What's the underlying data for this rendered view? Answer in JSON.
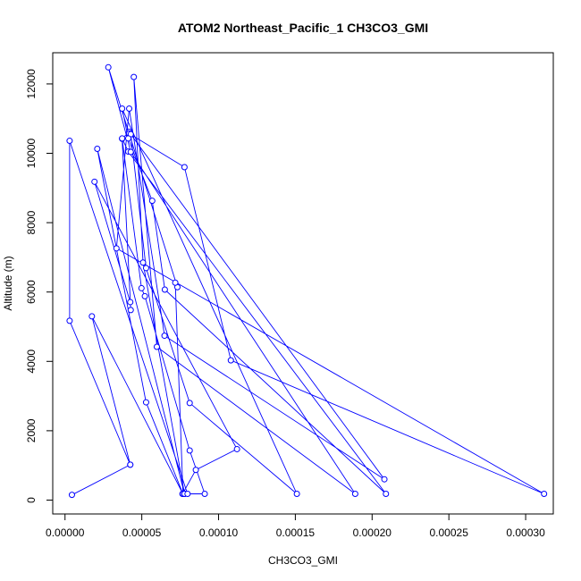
{
  "chart_data": {
    "type": "line",
    "title": "ATOM2 Northeast_Pacific_1 CH3CO3_GMI",
    "xlabel": "CH3CO3_GMI",
    "ylabel": "Altitude (m)",
    "xlim": [
      -8e-06,
      0.000318
    ],
    "ylim": [
      -400,
      12900
    ],
    "xticks": [
      0.0,
      5e-05,
      0.0001,
      0.00015,
      0.0002,
      0.00025,
      0.0003
    ],
    "xtick_labels": [
      "0.00000",
      "0.00005",
      "0.00010",
      "0.00015",
      "0.00020",
      "0.00025",
      "0.00030"
    ],
    "yticks": [
      0,
      2000,
      4000,
      6000,
      8000,
      10000,
      12000
    ],
    "ytick_labels": [
      "0",
      "2000",
      "4000",
      "6000",
      "8000",
      "10000",
      "12000"
    ],
    "grid": false,
    "line_color": "#0000ff",
    "marker": "open-circle",
    "series": [
      {
        "name": "",
        "x": [
          4.5e-06,
          4.25e-05,
          1.75e-05,
          7.68e-05,
          7.65e-05,
          8.52e-05,
          0.000112,
          1.92e-05,
          4.25e-05,
          4.28e-05,
          3.72e-05,
          4.18e-05,
          4.18e-05,
          7.78e-05,
          0.000108,
          0.000312,
          3.35e-05,
          4.18e-05,
          6.48e-05,
          0.000208,
          4.28e-05,
          5.28e-05,
          8.12e-05,
          0.000151,
          3.72e-05,
          4.12e-05,
          5.68e-05,
          6.5e-05,
          0.000209,
          4.12e-05,
          3.72e-05,
          4.98e-05,
          5.2e-05,
          8.12e-05,
          9.1e-05,
          7.78e-05,
          5.08e-05,
          4.48e-05,
          5.98e-05,
          0.000189,
          4.28e-05,
          2.82e-05,
          7.32e-05,
          7.18e-05,
          7.68e-05,
          5.28e-05,
          2.1e-05,
          7.78e-05,
          7.98e-05,
          3e-06,
          3e-06,
          4.25e-05
        ],
        "y": [
          150,
          1020,
          5300,
          180,
          180,
          870,
          1470,
          9180,
          5710,
          5480,
          10420,
          10620,
          10570,
          9600,
          4030,
          180,
          7260,
          11290,
          4740,
          600,
          10550,
          6690,
          2800,
          180,
          11290,
          10430,
          8630,
          6070,
          180,
          10050,
          10430,
          6110,
          5880,
          1430,
          180,
          180,
          6850,
          12200,
          4420,
          180,
          10040,
          12480,
          6140,
          6270,
          180,
          2820,
          10130,
          180,
          180,
          10360,
          5170,
          1020
        ]
      }
    ]
  }
}
